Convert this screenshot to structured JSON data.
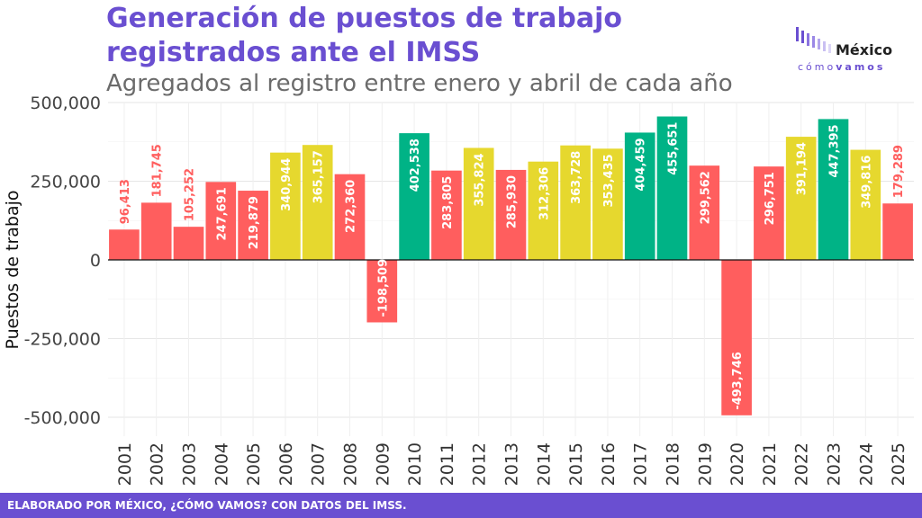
{
  "header": {
    "title_line1": "Generación de puestos de trabajo",
    "title_line2": "registrados ante el IMSS",
    "subtitle": "Agregados al registro entre enero y abril de cada año"
  },
  "logo": {
    "word": "México",
    "sub_light": "cómo",
    "sub_bold": "vamos"
  },
  "footer": {
    "text": "ELABORADO POR MÉXICO, ¿CÓMO VAMOS? CON DATOS DEL IMSS."
  },
  "colors": {
    "low": "#ff5e5e",
    "mid": "#e6d82e",
    "high": "#00b386",
    "accent": "#6a4fd1"
  },
  "chart_data": {
    "type": "bar",
    "ylabel": "Puestos de trabajo",
    "xlabel": "",
    "ylim": [
      -560000,
      500000
    ],
    "yticks": [
      -500000,
      -250000,
      0,
      250000,
      500000
    ],
    "ytick_labels": [
      "-500,000",
      "-250,000",
      "0",
      "250,000",
      "500,000"
    ],
    "grid": true,
    "categories": [
      "2001",
      "2002",
      "2003",
      "2004",
      "2005",
      "2006",
      "2007",
      "2008",
      "2009",
      "2010",
      "2011",
      "2012",
      "2013",
      "2014",
      "2015",
      "2016",
      "2017",
      "2018",
      "2019",
      "2020",
      "2021",
      "2022",
      "2023",
      "2024",
      "2025"
    ],
    "values": [
      96413,
      181745,
      105252,
      247691,
      219879,
      340944,
      365157,
      272360,
      -198509,
      402538,
      283805,
      355824,
      285930,
      312306,
      363728,
      353435,
      404459,
      455651,
      299562,
      -493746,
      296751,
      391194,
      447395,
      349816,
      179289
    ],
    "labels": [
      "96,413",
      "181,745",
      "105,252",
      "247,691",
      "219,879",
      "340,944",
      "365,157",
      "272,360",
      "-198,509",
      "402,538",
      "283,805",
      "355,824",
      "285,930",
      "312,306",
      "363,728",
      "353,435",
      "404,459",
      "455,651",
      "299,562",
      "-493,746",
      "296,751",
      "391,194",
      "447,395",
      "349,816",
      "179,289"
    ],
    "color_levels": [
      "low",
      "low",
      "low",
      "low",
      "low",
      "mid",
      "mid",
      "low",
      "low",
      "high",
      "low",
      "mid",
      "low",
      "mid",
      "mid",
      "mid",
      "high",
      "high",
      "low",
      "low",
      "low",
      "mid",
      "high",
      "mid",
      "low"
    ]
  }
}
